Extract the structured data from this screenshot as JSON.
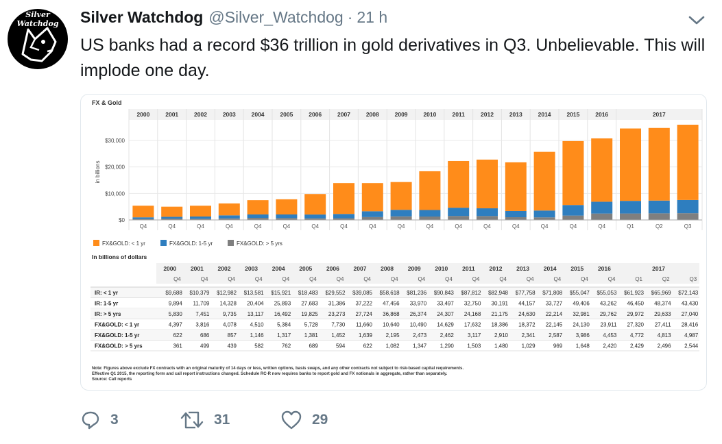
{
  "tweet": {
    "avatar_text": "Silver Watchdog",
    "avatar_icon": "dog-head-icon",
    "display_name": "Silver Watchdog",
    "handle": "@Silver_Watchdog",
    "separator": "·",
    "time": "21 h",
    "text": "US banks had a record $36 trillion in gold derivatives in Q3. Unbelievable. This will implode one day."
  },
  "actions": {
    "reply_count": "3",
    "retweet_count": "31",
    "like_count": "29"
  },
  "colors": {
    "lt1": "#ff8c1a",
    "y15": "#2e7ebf",
    "gt5": "#7f7f7f"
  },
  "chart_data": {
    "type": "bar",
    "title": "FX & Gold",
    "ylabel": "in billions",
    "yticks": [
      {
        "value": 0,
        "label": "$0"
      },
      {
        "value": 10000,
        "label": "$10,000"
      },
      {
        "value": 20000,
        "label": "$20,000"
      },
      {
        "value": 30000,
        "label": "$30,000"
      }
    ],
    "ylim": [
      0,
      36000
    ],
    "years": [
      "2000",
      "2001",
      "2002",
      "2003",
      "2004",
      "2005",
      "2006",
      "2007",
      "2008",
      "2009",
      "2010",
      "2011",
      "2012",
      "2013",
      "2014",
      "2015",
      "2016",
      "2017"
    ],
    "categories": [
      "Q4",
      "Q4",
      "Q4",
      "Q4",
      "Q4",
      "Q4",
      "Q4",
      "Q4",
      "Q4",
      "Q4",
      "Q4",
      "Q4",
      "Q4",
      "Q4",
      "Q4",
      "Q4",
      "Q4",
      "Q1",
      "Q2",
      "Q3"
    ],
    "series": [
      {
        "name": "FX&GOLD: > 5 yrs",
        "values": [
          361,
          499,
          439,
          582,
          762,
          689,
          594,
          622,
          1082,
          1347,
          1290,
          1503,
          1480,
          1029,
          969,
          1648,
          2420,
          2429,
          2496,
          2544
        ]
      },
      {
        "name": "FX&GOLD: 1-5 yr",
        "values": [
          622,
          686,
          857,
          1146,
          1317,
          1381,
          1452,
          1639,
          2195,
          2473,
          2462,
          3117,
          2910,
          2341,
          2587,
          3986,
          4453,
          4772,
          4813,
          4987
        ]
      },
      {
        "name": "FX&GOLD: < 1 yr",
        "values": [
          4397,
          3816,
          4078,
          4510,
          5384,
          5728,
          7730,
          11660,
          10640,
          10490,
          14629,
          17632,
          18386,
          18372,
          22145,
          24130,
          23911,
          27320,
          27411,
          28416
        ]
      }
    ],
    "legend": [
      "FX&GOLD: < 1 yr",
      "FX&GOLD: 1-5 yr",
      "FX&GOLD: > 5 yrs"
    ],
    "table_title": "In billions of dollars",
    "table": [
      {
        "label": "IR: < 1 yr",
        "values": [
          "$9,688",
          "$10,379",
          "$12,982",
          "$13,581",
          "$15,921",
          "$18,483",
          "$29,552",
          "$39,085",
          "$58,618",
          "$81,236",
          "$90,843",
          "$87,812",
          "$82,948",
          "$77,758",
          "$71,808",
          "$55,047",
          "$55,053",
          "$61,923",
          "$65,969",
          "$72,143"
        ]
      },
      {
        "label": "IR: 1-5 yr",
        "values": [
          "9,894",
          "11,709",
          "14,328",
          "20,404",
          "25,893",
          "27,683",
          "31,386",
          "37,222",
          "47,456",
          "33,970",
          "33,497",
          "32,750",
          "30,191",
          "44,157",
          "33,727",
          "49,406",
          "43,262",
          "46,450",
          "48,374",
          "43,430"
        ]
      },
      {
        "label": "IR: > 5 yrs",
        "values": [
          "5,830",
          "7,451",
          "9,735",
          "13,117",
          "16,492",
          "19,825",
          "23,273",
          "27,724",
          "36,868",
          "26,374",
          "24,307",
          "24,168",
          "21,175",
          "24,630",
          "22,214",
          "32,981",
          "29,762",
          "29,972",
          "29,633",
          "27,040"
        ]
      },
      {
        "label": "FX&GOLD: < 1 yr",
        "values": [
          "4,397",
          "3,816",
          "4,078",
          "4,510",
          "5,384",
          "5,728",
          "7,730",
          "11,660",
          "10,640",
          "10,490",
          "14,629",
          "17,632",
          "18,386",
          "18,372",
          "22,145",
          "24,130",
          "23,911",
          "27,320",
          "27,411",
          "28,416"
        ]
      },
      {
        "label": "FX&GOLD: 1-5 yr",
        "values": [
          "622",
          "686",
          "857",
          "1,146",
          "1,317",
          "1,381",
          "1,452",
          "1,639",
          "2,195",
          "2,473",
          "2,462",
          "3,117",
          "2,910",
          "2,341",
          "2,587",
          "3,986",
          "4,453",
          "4,772",
          "4,813",
          "4,987"
        ]
      },
      {
        "label": "FX&GOLD: > 5 yrs",
        "values": [
          "361",
          "499",
          "439",
          "582",
          "762",
          "689",
          "594",
          "622",
          "1,082",
          "1,347",
          "1,290",
          "1,503",
          "1,480",
          "1,029",
          "969",
          "1,648",
          "2,420",
          "2,429",
          "2,496",
          "2,544"
        ]
      }
    ],
    "notes": [
      "Note: Figures above exclude FX contracts with an original maturity of 14 days or less, written options, basis swaps, and any other contracts not subject to risk-based capital requirements.",
      "Effective Q1 2015, the reporting form and call report instructions changed.  Schedule RC-R now requires banks to report gold and FX notionals in aggregate, rather than separately.",
      "Source: Call reports"
    ]
  }
}
